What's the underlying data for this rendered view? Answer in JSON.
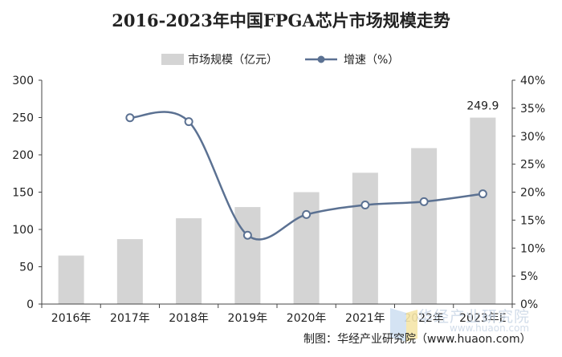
{
  "source_note": "制图：华经产业研究院（www.huaon.com）",
  "watermark": {
    "brand": "华经产业研究院",
    "url": "www.huaon.com"
  },
  "colors": {
    "bar": "#d4d4d4",
    "line": "#5b7192",
    "marker_fill": "#ffffff",
    "axis": "#444444"
  },
  "chart_data": {
    "type": "bar",
    "title": "2016-2023年中国FPGA芯片市场规模走势",
    "categories": [
      "2016年",
      "2017年",
      "2018年",
      "2019年",
      "2020年",
      "2021年",
      "2022年",
      "2023年E"
    ],
    "series": [
      {
        "name": "市场规模（亿元）",
        "type": "bar",
        "axis": "left",
        "values": [
          65,
          87,
          115,
          130,
          150,
          176,
          209,
          249.9
        ]
      },
      {
        "name": "增速（%）",
        "type": "line",
        "axis": "right",
        "smooth": true,
        "values": [
          null,
          33.3,
          32.6,
          12.3,
          16.0,
          17.7,
          18.3,
          19.7
        ]
      }
    ],
    "left_axis": {
      "min": 0,
      "max": 300,
      "ticks": [
        "0",
        "50",
        "100",
        "150",
        "200",
        "250",
        "300"
      ]
    },
    "right_axis": {
      "min": 0,
      "max": 40,
      "ticks": [
        "0%",
        "5%",
        "10%",
        "15%",
        "20%",
        "25%",
        "30%",
        "35%",
        "40%"
      ]
    },
    "data_labels": [
      {
        "category": "2023年E",
        "text": "249.9"
      }
    ],
    "grid": false,
    "legend_position": "top-center"
  }
}
